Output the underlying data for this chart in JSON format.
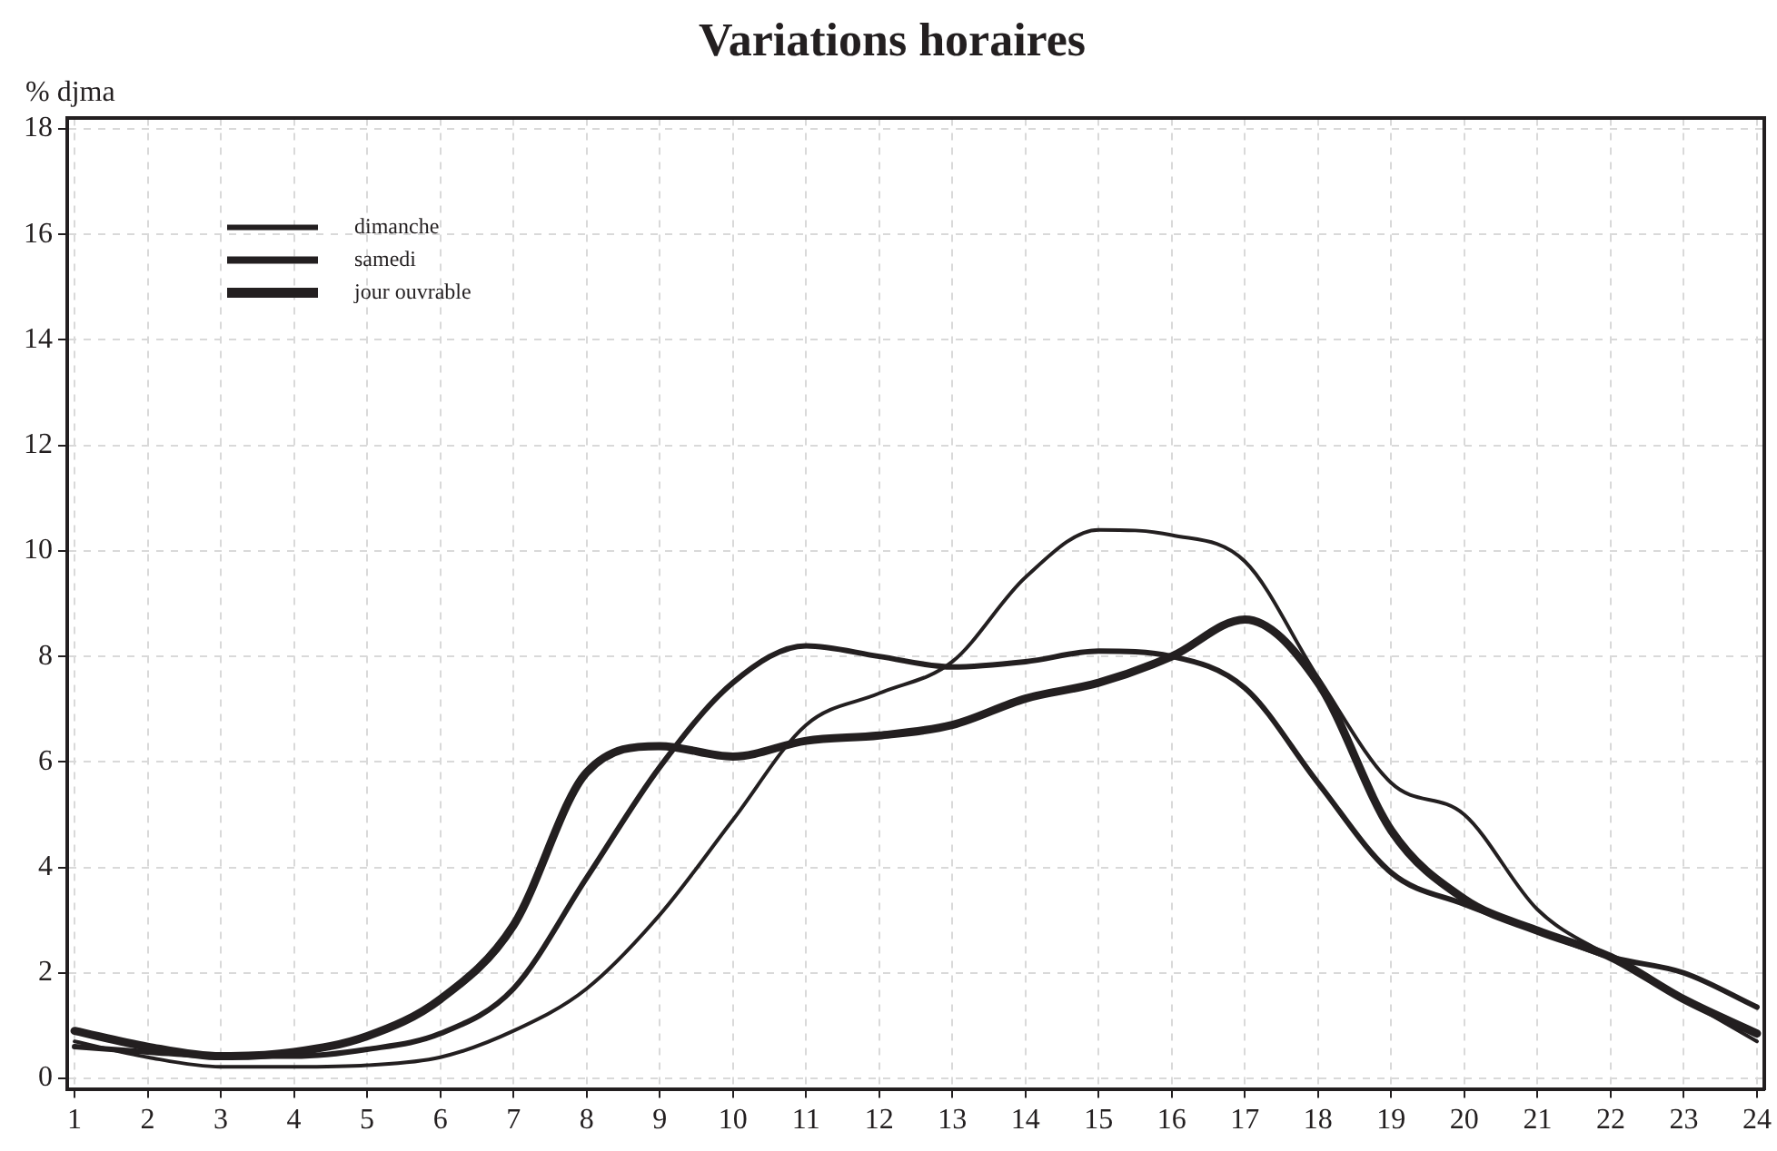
{
  "chart_data": {
    "type": "line",
    "title": "Variations horaires",
    "ylabel": "% djma",
    "x": [
      1,
      2,
      3,
      4,
      5,
      6,
      7,
      8,
      9,
      10,
      11,
      12,
      13,
      14,
      15,
      16,
      17,
      18,
      19,
      20,
      21,
      22,
      23,
      24
    ],
    "series": [
      {
        "name": "dimanche",
        "color": "#231f20",
        "values": [
          0.7,
          0.4,
          0.22,
          0.22,
          0.25,
          0.4,
          0.9,
          1.7,
          3.1,
          4.9,
          6.7,
          7.3,
          7.9,
          9.5,
          10.4,
          10.3,
          9.8,
          7.6,
          5.6,
          5.0,
          3.2,
          2.3,
          1.5,
          0.7
        ]
      },
      {
        "name": "samedi",
        "color": "#231f20",
        "values": [
          0.6,
          0.5,
          0.42,
          0.42,
          0.55,
          0.85,
          1.7,
          3.8,
          5.9,
          7.5,
          8.2,
          8.0,
          7.8,
          7.9,
          8.1,
          8.0,
          7.4,
          5.6,
          3.9,
          3.3,
          2.8,
          2.3,
          2.0,
          1.35
        ]
      },
      {
        "name": "jour ouvrable",
        "color": "#231f20",
        "values": [
          0.9,
          0.6,
          0.42,
          0.5,
          0.8,
          1.5,
          2.9,
          5.8,
          6.3,
          6.1,
          6.4,
          6.5,
          6.7,
          7.2,
          7.5,
          8.0,
          8.7,
          7.5,
          4.7,
          3.4,
          2.8,
          2.3,
          1.5,
          0.85
        ]
      }
    ],
    "xlim": [
      0.9,
      24.1
    ],
    "xticks": [
      1,
      2,
      3,
      4,
      5,
      6,
      7,
      8,
      9,
      10,
      11,
      12,
      13,
      14,
      15,
      16,
      17,
      18,
      19,
      20,
      21,
      22,
      23,
      24
    ],
    "ylim": [
      -0.2,
      18.2
    ],
    "yticks": [
      0,
      2,
      4,
      6,
      8,
      10,
      12,
      14,
      16,
      18
    ],
    "grid": true,
    "legend": "top left",
    "marker": "none",
    "line_style": "solid"
  }
}
